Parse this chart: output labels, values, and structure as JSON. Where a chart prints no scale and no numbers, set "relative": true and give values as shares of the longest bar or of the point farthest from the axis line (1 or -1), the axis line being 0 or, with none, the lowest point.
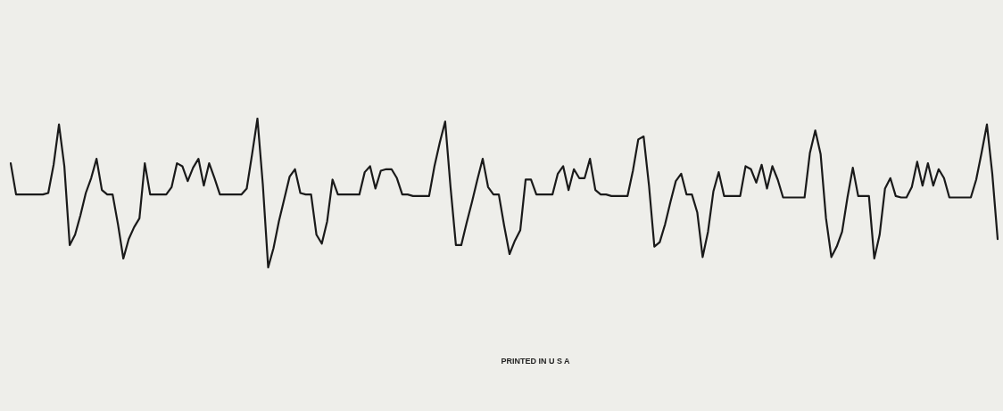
{
  "chart_data": {
    "type": "line",
    "relative": true,
    "marker": "none",
    "line_style": "solid",
    "annotations": [
      "PRINTED IN U S A"
    ],
    "categories": [
      null,
      null,
      null,
      null,
      null,
      null,
      null,
      null,
      null,
      null,
      null,
      null,
      null,
      null,
      null,
      null,
      null,
      null,
      null,
      null,
      null,
      null,
      null,
      null,
      null,
      null,
      null,
      null,
      null,
      null,
      null,
      null,
      null,
      null,
      null,
      null,
      null,
      null,
      null,
      null,
      null,
      null,
      null,
      null,
      null,
      null,
      null,
      null,
      null,
      null,
      null,
      null,
      null,
      null,
      null,
      null,
      null,
      null,
      null,
      null,
      null,
      null,
      null,
      null,
      null,
      null,
      null,
      null,
      null,
      null,
      null,
      null,
      null,
      null,
      null,
      null,
      null,
      null,
      null,
      null,
      null,
      null,
      null,
      null,
      null,
      null,
      null,
      null,
      null,
      null,
      null,
      null,
      null,
      null,
      null,
      null,
      null,
      null,
      null,
      null,
      null,
      null,
      null,
      null,
      null,
      null,
      null,
      null,
      null,
      null,
      null,
      null,
      null,
      null,
      null,
      null,
      null,
      null,
      null,
      null,
      null,
      null,
      null,
      null,
      null,
      null,
      null,
      null,
      null,
      null,
      null,
      null,
      null,
      null,
      null,
      null,
      null,
      null,
      null,
      null,
      null,
      null,
      null,
      null,
      null,
      null,
      null,
      null,
      null,
      null,
      null,
      null,
      null,
      null,
      null,
      null,
      null,
      null,
      null,
      null,
      null,
      null,
      null,
      null,
      null,
      null,
      null,
      null,
      null,
      null,
      null,
      null,
      null,
      null,
      null,
      null,
      null,
      null,
      null,
      null,
      null,
      null,
      null,
      null,
      null
    ],
    "series": [
      {
        "color": "#1a1a1a",
        "values": [
          0.7,
          0.49,
          0.49,
          0.49,
          0.49,
          0.49,
          0.49,
          0.5,
          0.69,
          0.96,
          0.68,
          0.15,
          0.22,
          0.35,
          0.5,
          0.6,
          0.73,
          0.52,
          0.49,
          0.49,
          0.29,
          0.06,
          0.19,
          0.27,
          0.33,
          0.7,
          0.49,
          0.49,
          0.49,
          0.49,
          0.54,
          0.7,
          0.68,
          0.58,
          0.67,
          0.73,
          0.55,
          0.7,
          0.6,
          0.49,
          0.49,
          0.49,
          0.49,
          0.49,
          0.53,
          0.76,
          1.0,
          0.56,
          0.0,
          0.13,
          0.31,
          0.46,
          0.61,
          0.66,
          0.5,
          0.49,
          0.49,
          0.22,
          0.16,
          0.31,
          0.59,
          0.49,
          0.49,
          0.49,
          0.49,
          0.49,
          0.64,
          0.68,
          0.53,
          0.65,
          0.66,
          0.66,
          0.6,
          0.49,
          0.49,
          0.48,
          0.48,
          0.48,
          0.48,
          0.68,
          0.84,
          0.98,
          0.54,
          0.15,
          0.15,
          0.3,
          0.44,
          0.59,
          0.73,
          0.54,
          0.49,
          0.49,
          0.28,
          0.09,
          0.18,
          0.25,
          0.59,
          0.59,
          0.49,
          0.49,
          0.49,
          0.49,
          0.63,
          0.68,
          0.52,
          0.66,
          0.6,
          0.6,
          0.73,
          0.52,
          0.49,
          0.49,
          0.48,
          0.48,
          0.48,
          0.48,
          0.65,
          0.86,
          0.88,
          0.55,
          0.14,
          0.17,
          0.29,
          0.44,
          0.58,
          0.63,
          0.49,
          0.49,
          0.37,
          0.07,
          0.24,
          0.51,
          0.64,
          0.48,
          0.48,
          0.48,
          0.48,
          0.68,
          0.66,
          0.57,
          0.69,
          0.53,
          0.68,
          0.59,
          0.47,
          0.47,
          0.47,
          0.47,
          0.47,
          0.77,
          0.92,
          0.76,
          0.33,
          0.07,
          0.14,
          0.24,
          0.47,
          0.67,
          0.48,
          0.48,
          0.48,
          0.06,
          0.22,
          0.53,
          0.6,
          0.48,
          0.47,
          0.47,
          0.54,
          0.71,
          0.55,
          0.7,
          0.55,
          0.66,
          0.6,
          0.47,
          0.47,
          0.47,
          0.47,
          0.47,
          0.59,
          0.77,
          0.96,
          0.63,
          0.19
        ]
      }
    ]
  }
}
